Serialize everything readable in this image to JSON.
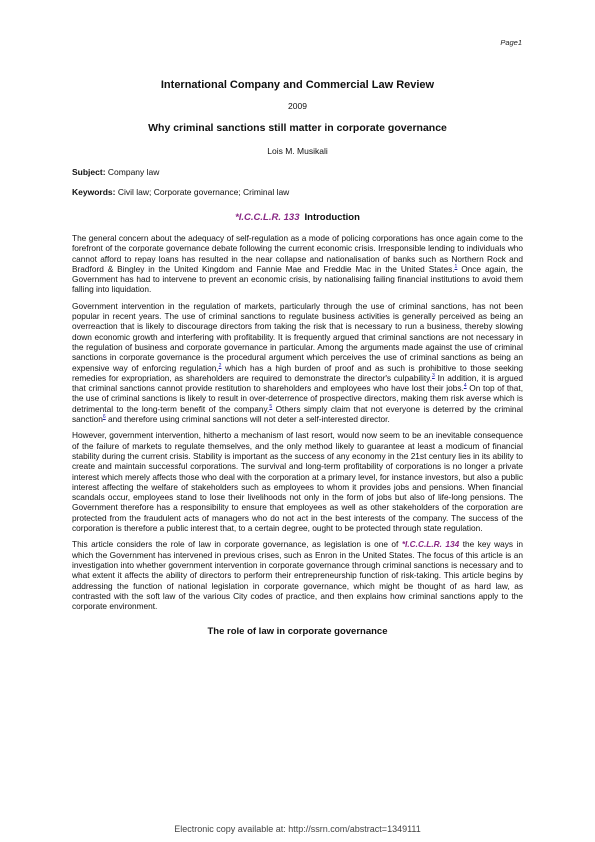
{
  "page_label": "Page1",
  "journal": "International Company and Commercial Law Review",
  "year": "2009",
  "title": "Why criminal sanctions still matter in corporate governance",
  "author": "Lois M. Musikali",
  "subject": {
    "label": "Subject:",
    "value": "Company law"
  },
  "keywords": {
    "label": "Keywords:",
    "value": "Civil law; Corporate governance; Criminal law"
  },
  "intro": {
    "pageref": "*I.C.C.L.R. 133",
    "heading": "Introduction"
  },
  "p1": {
    "a": "The general concern about the adequacy of self-regulation as a mode of policing corporations has once again come to the forefront of the corporate governance debate following the current economic crisis. Irresponsible lending to individuals who cannot afford to repay loans has resulted in the near collapse and nationalisation of banks such as Northern Rock and Bradford & Bingley in the United Kingdom and Fannie Mae and Freddie Mac in the United States.",
    "fn1": "1",
    "b": " Once again, the Government has had to intervene to prevent an economic crisis, by nationalising failing financial institutions to avoid them falling into liquidation."
  },
  "p2": {
    "a": "Government intervention in the regulation of markets, particularly through the use of criminal sanctions, has not been popular in recent years. The use of criminal sanctions to regulate business activities is generally perceived as being an overreaction that is likely to discourage directors from taking the risk that is necessary to run a business, thereby slowing down economic growth and interfering with profitability. It is frequently argued that criminal sanctions are not necessary in the regulation of business and corporate governance in particular. Among the arguments made against the use of criminal sanctions in corporate governance is the procedural argument which perceives the use of criminal sanctions as being an expensive way of enforcing regulation,",
    "fn2": "2",
    "b": " which has a high burden of proof and as such is prohibitive to those seeking remedies for expropriation, as shareholders are required to demonstrate the director's culpability.",
    "fn3": "3",
    "c": " In addition, it is argued that criminal sanctions cannot provide restitution to shareholders and employees who have lost their jobs.",
    "fn4": "4",
    "d": " On top of that, the use of criminal sanctions is likely to result in over-deterrence of prospective directors, making them risk averse which is detrimental to the long-term benefit of the company.",
    "fn5": "5",
    "e": " Others simply claim that not everyone is deterred by the criminal sanction",
    "fn6": "6",
    "f": " and therefore using criminal sanctions will not deter a self-interested director."
  },
  "p3": "However, government intervention, hitherto a mechanism of last resort, would now seem to be an inevitable consequence of the failure of markets to regulate themselves, and the only method likely to guarantee at least a modicum of financial stability during the current crisis. Stability is important as the success of any economy in the 21st century lies in its ability to create and maintain successful corporations. The survival and long-term profitability of corporations is no longer a private interest which merely affects those who deal with the corporation at a primary level, for instance investors, but also a public interest affecting the welfare of stakeholders such as employees to whom it provides jobs and pensions. When financial scandals occur, employees stand to lose their livelihoods not only in the form of jobs but also of life-long pensions. The Government therefore has a responsibility to ensure that employees as well as other stakeholders of the corporation are protected from the fraudulent acts of managers who do not act in the best interests of the company. The success of the corporation is therefore a public interest that, to a certain degree, ought to be protected through state regulation.",
  "p4": {
    "a": "This article considers the role of law in corporate governance, as legislation is one of ",
    "pageref": "*I.C.C.L.R. 134",
    "b": " the key ways in which the Government has intervened in previous crises, such as Enron in the United States. The focus of this article is an investigation into whether government intervention in corporate governance through criminal sanctions is necessary and to what extent it affects the ability of directors to perform their entrepreneurship function of risk-taking. This article begins by addressing the function of national legislation in corporate governance, which might be thought of as hard law, as contrasted with the soft law of the various City codes of practice, and then explains how criminal sanctions apply to the corporate environment."
  },
  "section2": "The role of law in corporate governance",
  "footer": "Electronic copy available at: http://ssrn.com/abstract=1349111"
}
